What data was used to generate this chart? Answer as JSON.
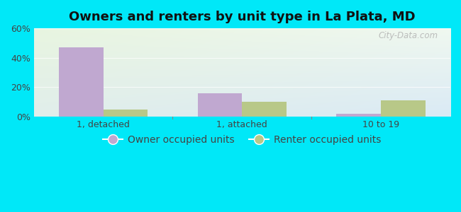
{
  "title": "Owners and renters by unit type in La Plata, MD",
  "categories": [
    "1, detached",
    "1, attached",
    "10 to 19"
  ],
  "owner_values": [
    47,
    16,
    2
  ],
  "renter_values": [
    5,
    10,
    11
  ],
  "owner_color": "#c0a8d0",
  "renter_color": "#b8c888",
  "ylim": [
    0,
    60
  ],
  "yticks": [
    0,
    20,
    40,
    60
  ],
  "ytick_labels": [
    "0%",
    "20%",
    "40%",
    "60%"
  ],
  "bar_width": 0.32,
  "background_outer": "#00e8f8",
  "bg_top_left": "#e8f5e0",
  "bg_bottom_right": "#daeaf5",
  "watermark": "City-Data.com",
  "legend_owner": "Owner occupied units",
  "legend_renter": "Renter occupied units",
  "title_fontsize": 13,
  "tick_fontsize": 9,
  "legend_fontsize": 10
}
